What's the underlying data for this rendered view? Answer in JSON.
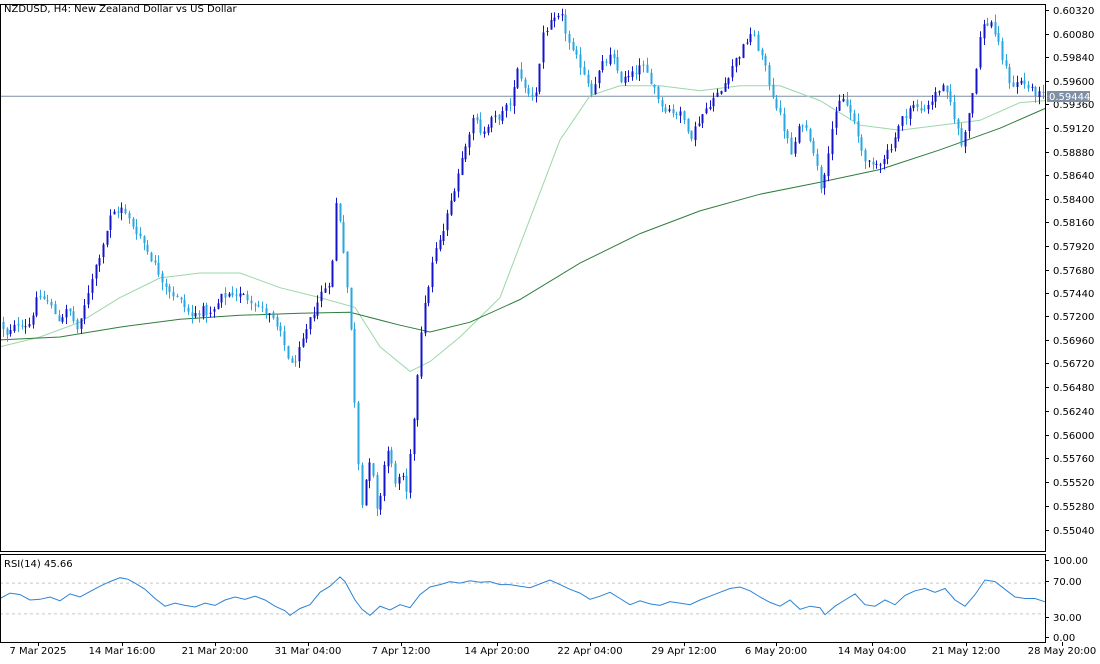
{
  "main_title": "NZDUSD, H4:  New Zealand Dollar vs US Dollar",
  "rsi_title": "RSI(14) 45.66",
  "last_price_label": "0.59444",
  "colors": {
    "bull": "#1515c8",
    "bear": "#2aa7e0",
    "ma_fast": "#9ad7a8",
    "ma_slow": "#2f7d3d",
    "rsi_line": "#2b83d6",
    "price_line": "#7f8fa6",
    "frame": "#000000",
    "rsi_levels": "#c8c8c8",
    "price_tag_bg": "#7f8fa6"
  },
  "chart_data": [
    {
      "type": "candlestick",
      "title": "NZDUSD, H4:  New Zealand Dollar vs US Dollar",
      "x_tick_labels": [
        "7 Mar 2025",
        "14 Mar 16:00",
        "21 Mar 20:00",
        "31 Mar 04:00",
        "7 Apr 12:00",
        "14 Apr 20:00",
        "22 Apr 04:00",
        "29 Apr 12:00",
        "6 May 20:00",
        "14 May 04:00",
        "21 May 12:00",
        "28 May 20:00"
      ],
      "y_tick_labels": [
        "0.60320",
        "0.60080",
        "0.59840",
        "0.59600",
        "0.59360",
        "0.59120",
        "0.58880",
        "0.58640",
        "0.58400",
        "0.58160",
        "0.57920",
        "0.57680",
        "0.57440",
        "0.57200",
        "0.56960",
        "0.56720",
        "0.56480",
        "0.56240",
        "0.56000",
        "0.55760",
        "0.55520",
        "0.55280",
        "0.55040"
      ],
      "ylim": [
        0.5486,
        0.6042
      ],
      "last_price": 0.59444,
      "close_path": [
        [
          0,
          0.572
        ],
        [
          10,
          0.57
        ],
        [
          22,
          0.5715
        ],
        [
          32,
          0.5712
        ],
        [
          42,
          0.5742
        ],
        [
          52,
          0.5735
        ],
        [
          62,
          0.5718
        ],
        [
          72,
          0.5728
        ],
        [
          82,
          0.5705
        ],
        [
          95,
          0.576
        ],
        [
          105,
          0.579
        ],
        [
          115,
          0.5825
        ],
        [
          125,
          0.583
        ],
        [
          135,
          0.5815
        ],
        [
          145,
          0.58
        ],
        [
          155,
          0.578
        ],
        [
          165,
          0.576
        ],
        [
          175,
          0.5745
        ],
        [
          185,
          0.5735
        ],
        [
          195,
          0.572
        ],
        [
          205,
          0.5728
        ],
        [
          215,
          0.5722
        ],
        [
          225,
          0.574
        ],
        [
          235,
          0.5745
        ],
        [
          245,
          0.5742
        ],
        [
          255,
          0.5738
        ],
        [
          265,
          0.5728
        ],
        [
          275,
          0.572
        ],
        [
          285,
          0.57
        ],
        [
          295,
          0.567
        ],
        [
          305,
          0.569
        ],
        [
          315,
          0.572
        ],
        [
          325,
          0.5745
        ],
        [
          335,
          0.576
        ],
        [
          340,
          0.584
        ],
        [
          345,
          0.581
        ],
        [
          350,
          0.576
        ],
        [
          355,
          0.57
        ],
        [
          360,
          0.56
        ],
        [
          365,
          0.553
        ],
        [
          370,
          0.556
        ],
        [
          375,
          0.5575
        ],
        [
          380,
          0.552
        ],
        [
          385,
          0.5545
        ],
        [
          390,
          0.559
        ],
        [
          395,
          0.557
        ],
        [
          400,
          0.555
        ],
        [
          405,
          0.556
        ],
        [
          410,
          0.554
        ],
        [
          415,
          0.559
        ],
        [
          420,
          0.565
        ],
        [
          425,
          0.571
        ],
        [
          430,
          0.574
        ],
        [
          435,
          0.577
        ],
        [
          440,
          0.579
        ],
        [
          445,
          0.58
        ],
        [
          450,
          0.582
        ],
        [
          455,
          0.584
        ],
        [
          460,
          0.586
        ],
        [
          465,
          0.588
        ],
        [
          470,
          0.5895
        ],
        [
          475,
          0.592
        ],
        [
          480,
          0.5925
        ],
        [
          485,
          0.5905
        ],
        [
          490,
          0.591
        ],
        [
          495,
          0.592
        ],
        [
          505,
          0.5925
        ],
        [
          515,
          0.594
        ],
        [
          522,
          0.5975
        ],
        [
          530,
          0.5945
        ],
        [
          540,
          0.595
        ],
        [
          547,
          0.601
        ],
        [
          555,
          0.6018
        ],
        [
          565,
          0.6025
        ],
        [
          575,
          0.599
        ],
        [
          585,
          0.5975
        ],
        [
          595,
          0.595
        ],
        [
          605,
          0.5975
        ],
        [
          615,
          0.5985
        ],
        [
          625,
          0.596
        ],
        [
          635,
          0.5965
        ],
        [
          645,
          0.5975
        ],
        [
          655,
          0.596
        ],
        [
          665,
          0.5935
        ],
        [
          675,
          0.593
        ],
        [
          685,
          0.5925
        ],
        [
          695,
          0.5905
        ],
        [
          705,
          0.5925
        ],
        [
          715,
          0.594
        ],
        [
          725,
          0.595
        ],
        [
          735,
          0.5975
        ],
        [
          745,
          0.599
        ],
        [
          755,
          0.601
        ],
        [
          765,
          0.5985
        ],
        [
          775,
          0.595
        ],
        [
          785,
          0.592
        ],
        [
          795,
          0.5885
        ],
        [
          805,
          0.592
        ],
        [
          815,
          0.59
        ],
        [
          825,
          0.585
        ],
        [
          835,
          0.591
        ],
        [
          845,
          0.5945
        ],
        [
          855,
          0.5925
        ],
        [
          865,
          0.589
        ],
        [
          875,
          0.587
        ],
        [
          885,
          0.588
        ],
        [
          895,
          0.5895
        ],
        [
          905,
          0.592
        ],
        [
          915,
          0.5935
        ],
        [
          925,
          0.593
        ],
        [
          935,
          0.594
        ],
        [
          945,
          0.5955
        ],
        [
          955,
          0.5935
        ],
        [
          965,
          0.5895
        ],
        [
          975,
          0.594
        ],
        [
          985,
          0.6015
        ],
        [
          995,
          0.602
        ],
        [
          1005,
          0.5985
        ],
        [
          1015,
          0.5955
        ],
        [
          1025,
          0.596
        ],
        [
          1035,
          0.595
        ],
        [
          1045,
          0.59444
        ]
      ],
      "moving_averages": [
        {
          "series_role": "fast",
          "points": [
            [
              0,
              0.569
            ],
            [
              40,
              0.57
            ],
            [
              80,
              0.5715
            ],
            [
              120,
              0.574
            ],
            [
              160,
              0.576
            ],
            [
              200,
              0.5765
            ],
            [
              240,
              0.5765
            ],
            [
              280,
              0.575
            ],
            [
              320,
              0.574
            ],
            [
              355,
              0.573
            ],
            [
              380,
              0.569
            ],
            [
              410,
              0.5665
            ],
            [
              430,
              0.5675
            ],
            [
              460,
              0.57
            ],
            [
              500,
              0.574
            ],
            [
              530,
              0.582
            ],
            [
              560,
              0.59
            ],
            [
              590,
              0.5945
            ],
            [
              620,
              0.5955
            ],
            [
              660,
              0.5955
            ],
            [
              700,
              0.595
            ],
            [
              740,
              0.5955
            ],
            [
              780,
              0.5955
            ],
            [
              820,
              0.594
            ],
            [
              860,
              0.5915
            ],
            [
              900,
              0.591
            ],
            [
              940,
              0.5915
            ],
            [
              980,
              0.592
            ],
            [
              1020,
              0.5938
            ],
            [
              1045,
              0.594
            ]
          ]
        },
        {
          "series_role": "slow",
          "points": [
            [
              0,
              0.5697
            ],
            [
              60,
              0.57
            ],
            [
              120,
              0.571
            ],
            [
              180,
              0.5718
            ],
            [
              240,
              0.5722
            ],
            [
              300,
              0.5724
            ],
            [
              350,
              0.5725
            ],
            [
              400,
              0.5712
            ],
            [
              430,
              0.5705
            ],
            [
              470,
              0.5715
            ],
            [
              520,
              0.5738
            ],
            [
              580,
              0.5775
            ],
            [
              640,
              0.5805
            ],
            [
              700,
              0.5828
            ],
            [
              760,
              0.5845
            ],
            [
              820,
              0.5857
            ],
            [
              880,
              0.587
            ],
            [
              940,
              0.589
            ],
            [
              1000,
              0.5912
            ],
            [
              1045,
              0.5932
            ]
          ]
        }
      ]
    },
    {
      "type": "line",
      "title": "RSI(14) 45.66",
      "y_tick_labels": [
        "100.00",
        "70.00",
        "30.00",
        "0.00"
      ],
      "ylim": [
        0,
        100
      ],
      "levels": [
        70,
        30
      ],
      "current_value": 45.66,
      "points": [
        [
          0,
          50
        ],
        [
          10,
          57
        ],
        [
          20,
          55
        ],
        [
          30,
          48
        ],
        [
          40,
          49
        ],
        [
          50,
          52
        ],
        [
          60,
          47
        ],
        [
          70,
          56
        ],
        [
          80,
          52
        ],
        [
          90,
          59
        ],
        [
          100,
          66
        ],
        [
          110,
          72
        ],
        [
          120,
          77
        ],
        [
          128,
          75
        ],
        [
          135,
          70
        ],
        [
          145,
          62
        ],
        [
          155,
          50
        ],
        [
          165,
          40
        ],
        [
          175,
          44
        ],
        [
          185,
          41
        ],
        [
          195,
          39
        ],
        [
          205,
          44
        ],
        [
          215,
          41
        ],
        [
          225,
          48
        ],
        [
          235,
          52
        ],
        [
          245,
          49
        ],
        [
          255,
          53
        ],
        [
          265,
          48
        ],
        [
          275,
          40
        ],
        [
          285,
          34
        ],
        [
          290,
          28
        ],
        [
          300,
          37
        ],
        [
          310,
          42
        ],
        [
          320,
          58
        ],
        [
          330,
          66
        ],
        [
          340,
          78
        ],
        [
          345,
          72
        ],
        [
          355,
          48
        ],
        [
          362,
          36
        ],
        [
          370,
          28
        ],
        [
          380,
          40
        ],
        [
          390,
          35
        ],
        [
          400,
          42
        ],
        [
          410,
          38
        ],
        [
          420,
          55
        ],
        [
          430,
          65
        ],
        [
          440,
          68
        ],
        [
          450,
          72
        ],
        [
          460,
          70
        ],
        [
          470,
          73
        ],
        [
          480,
          71
        ],
        [
          490,
          72
        ],
        [
          500,
          68
        ],
        [
          510,
          68
        ],
        [
          520,
          66
        ],
        [
          530,
          64
        ],
        [
          540,
          69
        ],
        [
          550,
          74
        ],
        [
          560,
          68
        ],
        [
          570,
          62
        ],
        [
          580,
          57
        ],
        [
          590,
          49
        ],
        [
          600,
          53
        ],
        [
          610,
          58
        ],
        [
          620,
          50
        ],
        [
          630,
          42
        ],
        [
          640,
          47
        ],
        [
          650,
          43
        ],
        [
          660,
          41
        ],
        [
          670,
          46
        ],
        [
          680,
          44
        ],
        [
          690,
          42
        ],
        [
          700,
          48
        ],
        [
          710,
          53
        ],
        [
          720,
          58
        ],
        [
          730,
          63
        ],
        [
          740,
          65
        ],
        [
          750,
          60
        ],
        [
          760,
          52
        ],
        [
          770,
          45
        ],
        [
          780,
          40
        ],
        [
          790,
          48
        ],
        [
          800,
          36
        ],
        [
          810,
          40
        ],
        [
          820,
          38
        ],
        [
          825,
          29
        ],
        [
          835,
          40
        ],
        [
          845,
          48
        ],
        [
          855,
          56
        ],
        [
          865,
          42
        ],
        [
          875,
          40
        ],
        [
          885,
          48
        ],
        [
          895,
          42
        ],
        [
          905,
          54
        ],
        [
          915,
          60
        ],
        [
          925,
          63
        ],
        [
          935,
          58
        ],
        [
          945,
          63
        ],
        [
          955,
          48
        ],
        [
          965,
          40
        ],
        [
          975,
          55
        ],
        [
          985,
          74
        ],
        [
          995,
          72
        ],
        [
          1005,
          62
        ],
        [
          1015,
          52
        ],
        [
          1025,
          50
        ],
        [
          1035,
          50
        ],
        [
          1045,
          45.66
        ]
      ]
    }
  ]
}
